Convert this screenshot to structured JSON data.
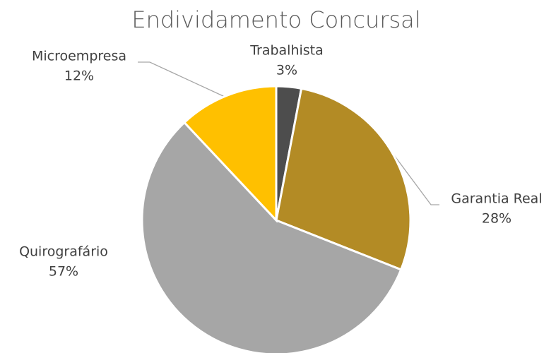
{
  "chart_data": {
    "type": "pie",
    "title": "Endividamento Concursal",
    "categories": [
      "Trabalhista",
      "Garantia Real",
      "Quirografário",
      "Microempresa"
    ],
    "values": [
      3,
      28,
      57,
      12
    ],
    "value_labels": [
      "3%",
      "28%",
      "57%",
      "12%"
    ],
    "colors": [
      "#4d4d4d",
      "#b38b25",
      "#a6a6a6",
      "#ffc000"
    ]
  }
}
